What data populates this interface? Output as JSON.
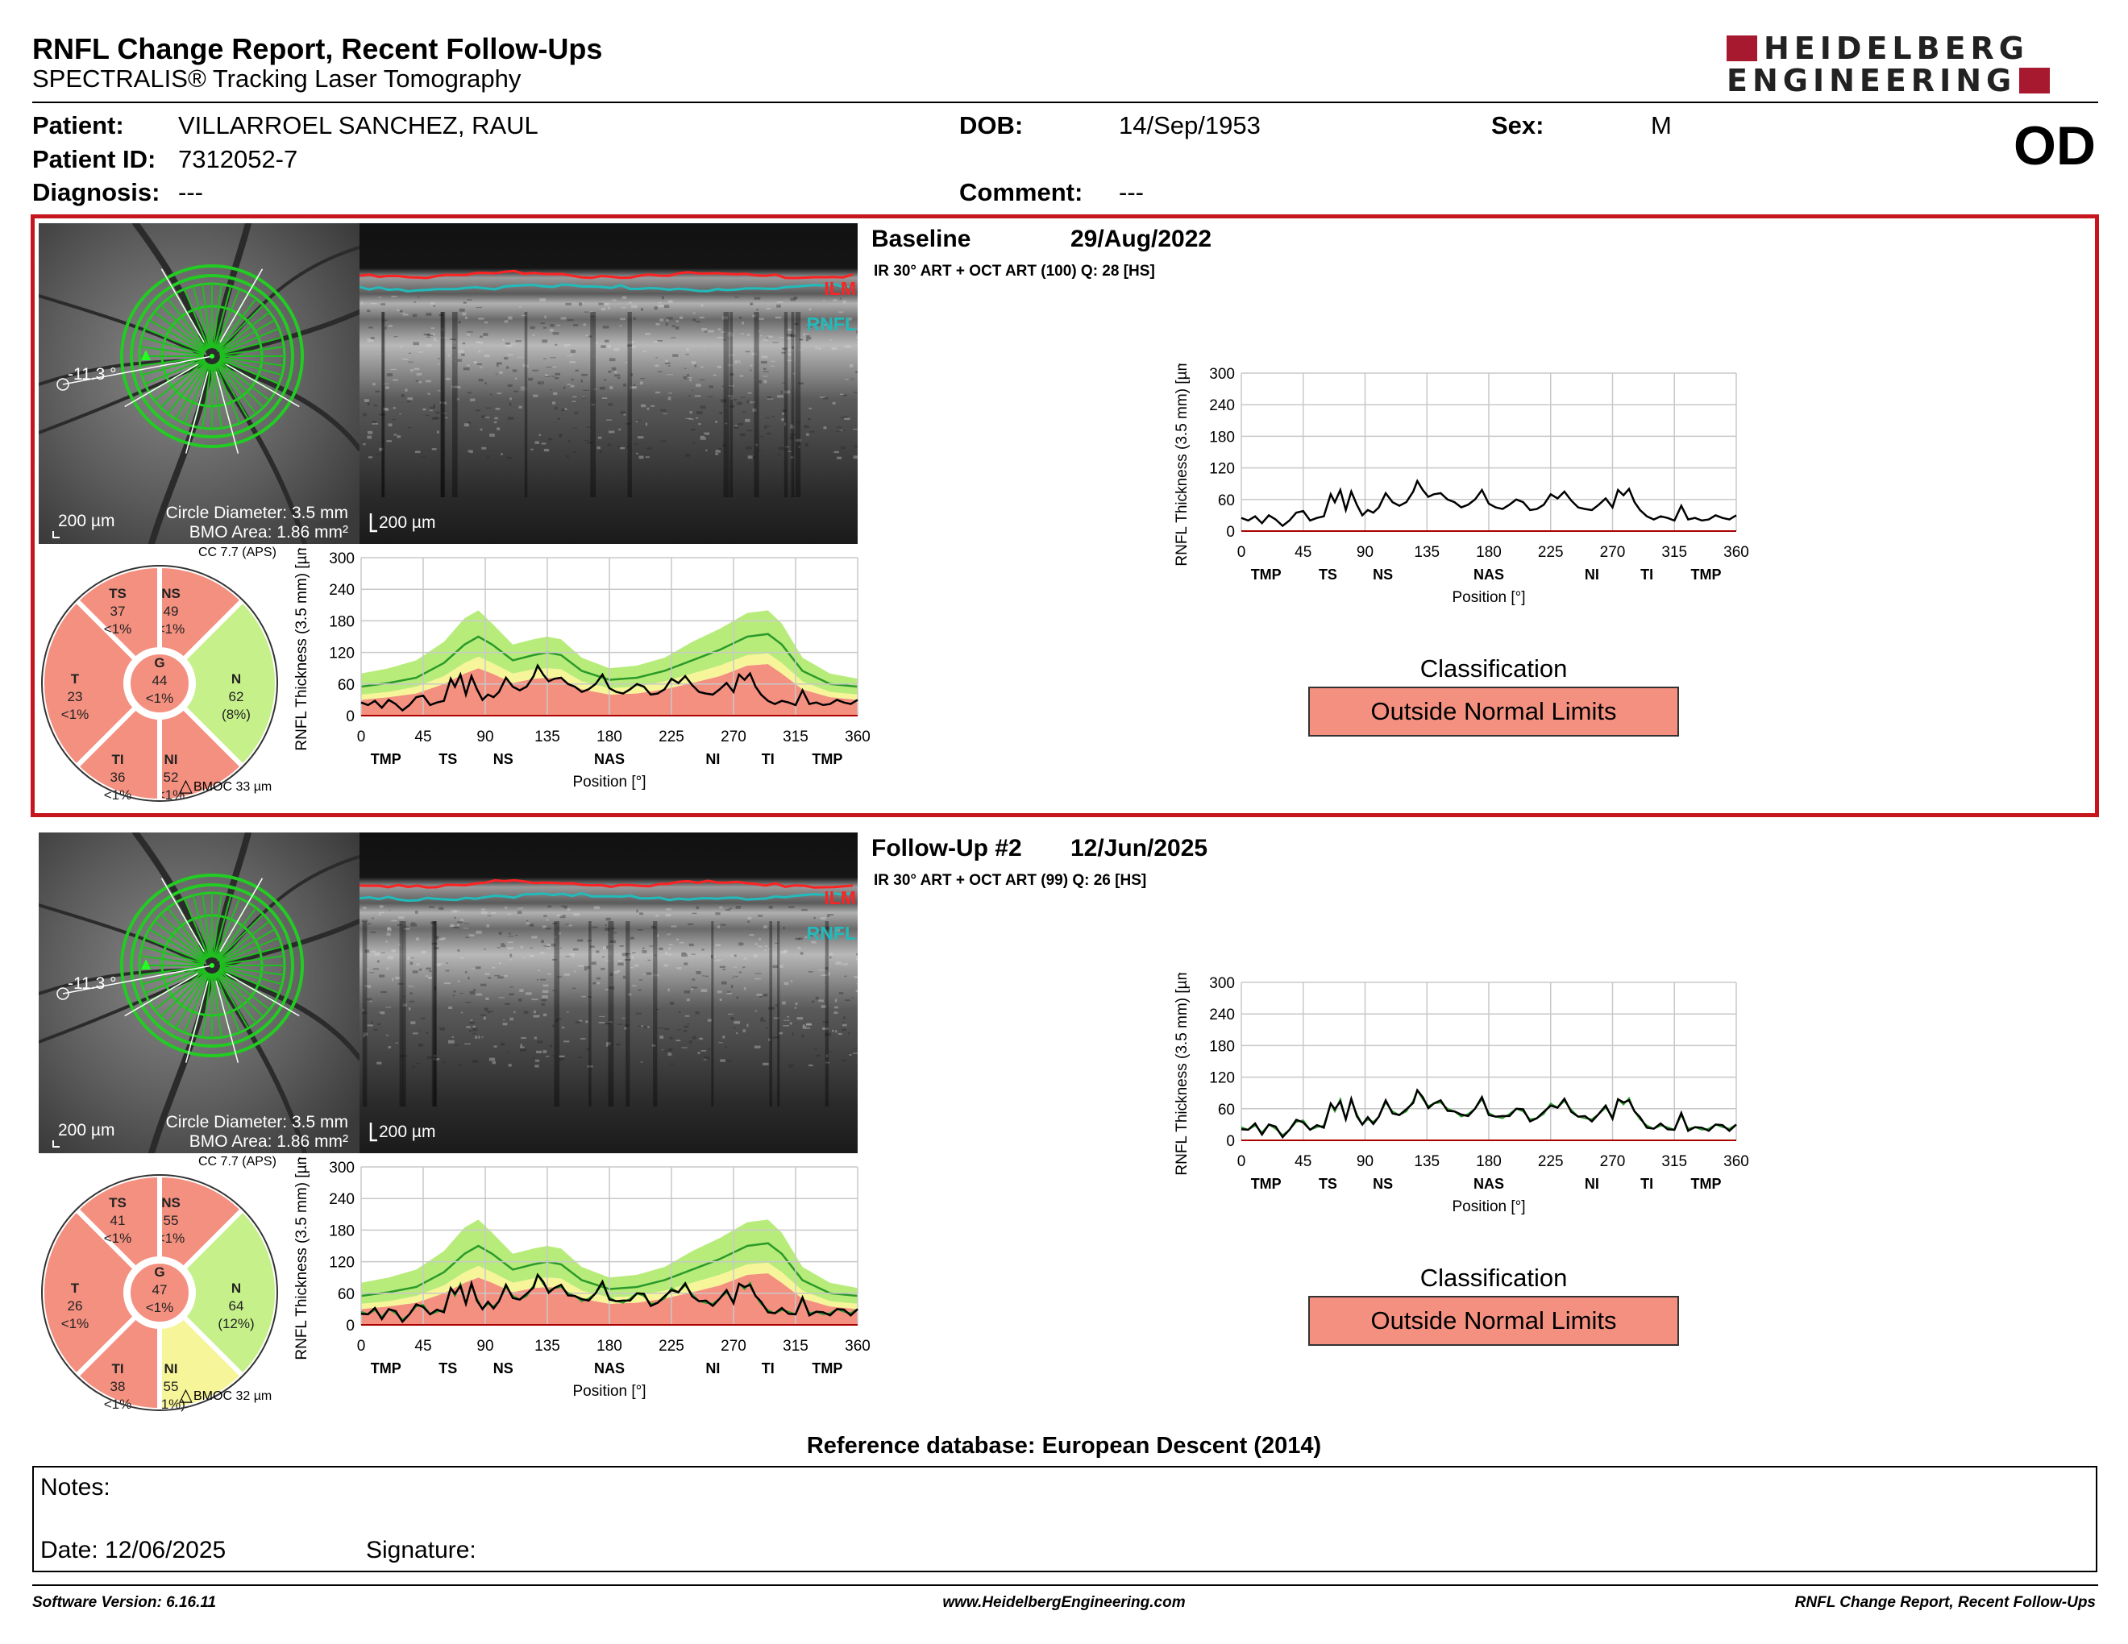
{
  "header": {
    "title": "RNFL Change Report, Recent Follow-Ups",
    "subtitle": "SPECTRALIS® Tracking Laser Tomography",
    "logo_line1": "HEIDELBERG",
    "logo_line2": "ENGINEERING",
    "eye": "OD"
  },
  "patient": {
    "patient_label": "Patient:",
    "patient_value": "VILLARROEL SANCHEZ, RAUL",
    "id_label": "Patient ID:",
    "id_value": "7312052-7",
    "diagnosis_label": "Diagnosis:",
    "diagnosis_value": "---",
    "dob_label": "DOB:",
    "dob_value": "14/Sep/1953",
    "comment_label": "Comment:",
    "comment_value": "---",
    "sex_label": "Sex:",
    "sex_value": "M"
  },
  "exams": [
    {
      "title": "Baseline",
      "date": "29/Aug/2022",
      "acq": "IR 30° ART + OCT ART (100) Q: 28 [HS]",
      "fundus": {
        "angle": "-11.3 °",
        "scale": "200 µm",
        "circle": "Circle Diameter: 3.5 mm",
        "bmo": "BMO Area: 1.86 mm²"
      },
      "bscan": {
        "scale": "200 µm",
        "ilm": "ILM",
        "rnfl": "RNFL"
      },
      "cc": "CC 7.7 (APS)",
      "bmoc": "BMOC 33 µm",
      "sectors": {
        "TS": [
          "TS",
          "37",
          "<1%"
        ],
        "NS": [
          "NS",
          "49",
          "<1%"
        ],
        "N": [
          "N",
          "62",
          "(8%)"
        ],
        "NI": [
          "NI",
          "52",
          "<1%"
        ],
        "TI": [
          "TI",
          "36",
          "<1%"
        ],
        "T": [
          "T",
          "23",
          "<1%"
        ],
        "G": [
          "G",
          "44",
          "<1%"
        ]
      },
      "sector_colors": {
        "TS": "#f49080",
        "NS": "#f49080",
        "N": "#c6f08a",
        "NI": "#f49080",
        "TI": "#f49080",
        "T": "#f49080",
        "G": "#f49080"
      },
      "classification_label": "Classification",
      "classification": "Outside Normal Limits"
    },
    {
      "title": "Follow-Up #2",
      "date": "12/Jun/2025",
      "acq": "IR 30° ART + OCT ART (99) Q: 26 [HS]",
      "fundus": {
        "angle": "-11.3 °",
        "scale": "200 µm",
        "circle": "Circle Diameter: 3.5 mm",
        "bmo": "BMO Area: 1.86 mm²"
      },
      "bscan": {
        "scale": "200 µm",
        "ilm": "ILM",
        "rnfl": "RNFL"
      },
      "cc": "CC 7.7 (APS)",
      "bmoc": "BMOC 32 µm",
      "sectors": {
        "TS": [
          "TS",
          "41",
          "<1%"
        ],
        "NS": [
          "NS",
          "55",
          "<1%"
        ],
        "N": [
          "N",
          "64",
          "(12%)"
        ],
        "NI": [
          "NI",
          "55",
          "(1%)"
        ],
        "TI": [
          "TI",
          "38",
          "<1%"
        ],
        "T": [
          "T",
          "26",
          "<1%"
        ],
        "G": [
          "G",
          "47",
          "<1%"
        ]
      },
      "sector_colors": {
        "TS": "#f49080",
        "NS": "#f49080",
        "N": "#c6f08a",
        "NI": "#f7f59a",
        "TI": "#f49080",
        "T": "#f49080",
        "G": "#f49080"
      },
      "classification_label": "Classification",
      "classification": "Outside Normal Limits"
    }
  ],
  "chart_data": [
    {
      "type": "line",
      "ylabel": "RNFL Thickness (3.5 mm) [µm]",
      "xlabel": "Position [°]",
      "xlim": [
        0,
        360
      ],
      "ylim": [
        0,
        300
      ],
      "xticks": [
        0,
        45,
        90,
        135,
        180,
        225,
        270,
        315,
        360
      ],
      "yticks": [
        0,
        60,
        120,
        180,
        240,
        300
      ],
      "sector_labels": [
        {
          "label": "TMP",
          "x": 18
        },
        {
          "label": "TS",
          "x": 63
        },
        {
          "label": "NS",
          "x": 103
        },
        {
          "label": "NAS",
          "x": 180
        },
        {
          "label": "NI",
          "x": 255
        },
        {
          "label": "TI",
          "x": 295
        },
        {
          "label": "TMP",
          "x": 338
        }
      ],
      "series": [
        {
          "color": "#000000",
          "x": [
            0,
            5,
            10,
            15,
            20,
            25,
            30,
            35,
            40,
            45,
            50,
            55,
            60,
            65,
            68,
            72,
            76,
            80,
            84,
            88,
            92,
            96,
            100,
            105,
            110,
            115,
            120,
            125,
            128,
            132,
            136,
            140,
            145,
            150,
            155,
            160,
            165,
            170,
            175,
            180,
            185,
            190,
            195,
            200,
            205,
            210,
            215,
            220,
            225,
            230,
            235,
            240,
            245,
            250,
            255,
            260,
            265,
            270,
            274,
            278,
            282,
            286,
            290,
            295,
            300,
            305,
            310,
            315,
            320,
            325,
            330,
            335,
            340,
            345,
            350,
            355,
            360
          ],
          "y": [
            25,
            20,
            28,
            15,
            30,
            22,
            10,
            20,
            35,
            38,
            20,
            25,
            28,
            70,
            55,
            78,
            40,
            75,
            50,
            30,
            40,
            35,
            45,
            72,
            55,
            48,
            55,
            75,
            95,
            78,
            65,
            70,
            72,
            60,
            55,
            45,
            50,
            60,
            78,
            52,
            45,
            42,
            50,
            60,
            55,
            40,
            42,
            50,
            70,
            62,
            75,
            58,
            45,
            42,
            40,
            50,
            62,
            45,
            78,
            68,
            80,
            55,
            40,
            28,
            22,
            28,
            25,
            20,
            48,
            22,
            25,
            20,
            22,
            30,
            25,
            22,
            30
          ]
        }
      ]
    },
    {
      "type": "area",
      "ylabel": "RNFL Thickness (3.5 mm) [µm]",
      "xlabel": "Position [°]",
      "xlim": [
        0,
        360
      ],
      "ylim": [
        0,
        300
      ],
      "xticks": [
        0,
        45,
        90,
        135,
        180,
        225,
        270,
        315,
        360
      ],
      "yticks": [
        0,
        60,
        120,
        180,
        240,
        300
      ],
      "sector_labels": [
        {
          "label": "TMP",
          "x": 18
        },
        {
          "label": "TS",
          "x": 63
        },
        {
          "label": "NS",
          "x": 103
        },
        {
          "label": "NAS",
          "x": 180
        },
        {
          "label": "NI",
          "x": 255
        },
        {
          "label": "TI",
          "x": 295
        },
        {
          "label": "TMP",
          "x": 338
        }
      ],
      "bands": {
        "x": [
          0,
          20,
          40,
          60,
          75,
          85,
          95,
          110,
          125,
          135,
          145,
          160,
          180,
          200,
          220,
          240,
          260,
          280,
          295,
          305,
          320,
          340,
          360
        ],
        "upper": [
          80,
          90,
          105,
          140,
          185,
          200,
          175,
          135,
          145,
          150,
          145,
          110,
          90,
          95,
          110,
          140,
          165,
          195,
          200,
          175,
          110,
          80,
          70
        ],
        "normal": [
          55,
          62,
          72,
          100,
          135,
          150,
          135,
          105,
          115,
          120,
          115,
          85,
          68,
          72,
          85,
          105,
          125,
          150,
          155,
          135,
          85,
          60,
          55
        ],
        "border": [
          40,
          45,
          55,
          75,
          100,
          112,
          100,
          80,
          88,
          90,
          88,
          65,
          52,
          55,
          65,
          80,
          95,
          115,
          118,
          100,
          65,
          45,
          40
        ],
        "lower": [
          30,
          35,
          42,
          60,
          80,
          90,
          80,
          62,
          70,
          72,
          70,
          50,
          40,
          42,
          50,
          62,
          75,
          95,
          98,
          80,
          50,
          35,
          30
        ]
      }
    }
  ],
  "footer": {
    "refdb": "Reference database: European Descent (2014)",
    "notes_label": "Notes:",
    "date_label": "Date: 12/06/2025",
    "signature_label": "Signature:",
    "software": "Software Version: 6.16.11",
    "website": "www.HeidelbergEngineering.com",
    "report": "RNFL Change Report, Recent Follow-Ups"
  }
}
